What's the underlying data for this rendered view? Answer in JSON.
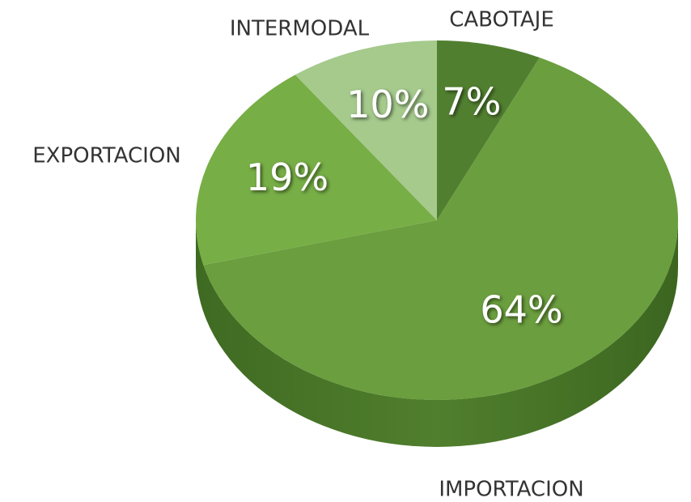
{
  "chart_data": {
    "type": "pie",
    "categories": [
      "CABOTAJE",
      "IMPORTACION",
      "EXPORTACION",
      "INTERMODAL"
    ],
    "values": [
      7,
      64,
      19,
      10
    ],
    "value_labels": [
      "7%",
      "64%",
      "19%",
      "10%"
    ],
    "colors": [
      "#517f30",
      "#6b9e3e",
      "#77ae46",
      "#a5ca8c"
    ]
  }
}
